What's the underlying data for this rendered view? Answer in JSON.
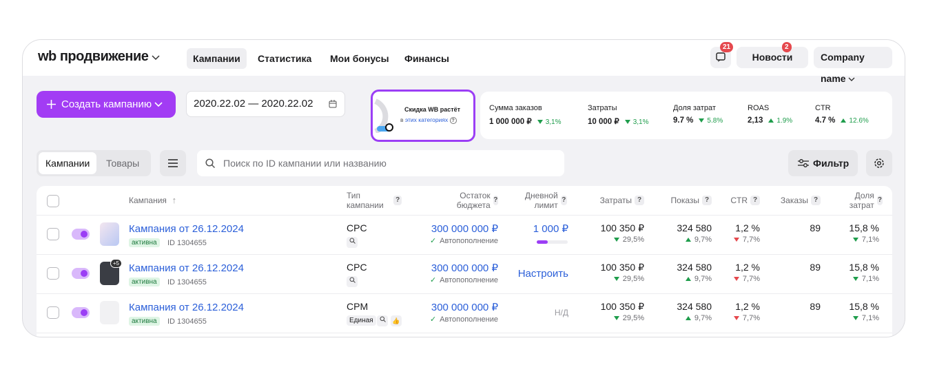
{
  "header": {
    "logo": "wb продвижение",
    "nav": [
      "Кампании",
      "Статистика",
      "Мои бонусы",
      "Финансы"
    ],
    "chat_badge": "21",
    "news": "Новости",
    "news_badge": "2",
    "company": "Company name"
  },
  "toolbar": {
    "create": "Создать кампанию",
    "date_from": "2020.22.02",
    "date_sep": "—",
    "date_to": "2020.22.02",
    "promo": {
      "title": "Скидка WB растёт",
      "prefix": "в",
      "link": "этих категориях"
    },
    "stats": [
      {
        "label": "Сумма заказов",
        "value": "1 000 000 ₽",
        "change": {
          "text": "3,1%",
          "dir": "down",
          "color": "#1f9d4c"
        }
      },
      {
        "label": "Затраты",
        "value": "10 000 ₽",
        "change": {
          "text": "3,1%",
          "dir": "down",
          "color": "#1f9d4c"
        }
      },
      {
        "label": "Доля затрат",
        "value": "9.7 %",
        "change": {
          "text": "5.8%",
          "dir": "down",
          "color": "#1f9d4c"
        }
      },
      {
        "label": "ROAS",
        "value": "2,13",
        "change": {
          "text": "1.9%",
          "dir": "up",
          "color": "#1f9d4c"
        }
      },
      {
        "label": "CTR",
        "value": "4.7 %",
        "change": {
          "text": "12.6%",
          "dir": "up",
          "color": "#1f9d4c"
        }
      }
    ]
  },
  "filters": {
    "tabs": [
      "Кампании",
      "Товары"
    ],
    "search": "Поиск по ID кампании или названию",
    "filter": "Фильтр"
  },
  "table": {
    "columns": [
      "Кампания",
      "Тип кампании",
      "Остаток бюджета",
      "Дневной лимит",
      "Затраты",
      "Показы",
      "CTR",
      "Заказы",
      "Доля затрат"
    ],
    "rows": [
      {
        "name": "Кампания от 26.12.2024",
        "status": "активна",
        "id": "ID 1304655",
        "type": "CPC",
        "type_tag": null,
        "image_badge": null,
        "budget": "300 000 000 ₽",
        "autopay": "Автопополнение",
        "limit": "1 000 ₽",
        "limit_kind": "value",
        "spend": "100 350 ₽",
        "spend_change": {
          "text": "29,5%",
          "dir": "down",
          "color": "#1f9d4c"
        },
        "shows": "324 580",
        "shows_change": {
          "text": "9,7%",
          "dir": "up",
          "color": "#1f9d4c"
        },
        "ctr": "1,2 %",
        "ctr_change": {
          "text": "7,7%",
          "dir": "down",
          "color": "#e5484d"
        },
        "orders": "89",
        "share": "15,8 %",
        "share_change": {
          "text": "7,1%",
          "dir": "down",
          "color": "#1f9d4c"
        }
      },
      {
        "name": "Кампания от 26.12.2024",
        "status": "активна",
        "id": "ID 1304655",
        "type": "CPC",
        "type_tag": null,
        "image_badge": "+5",
        "budget": "300 000 000 ₽",
        "autopay": "Автопополнение",
        "limit": "Настроить",
        "limit_kind": "link",
        "spend": "100 350 ₽",
        "spend_change": {
          "text": "29,5%",
          "dir": "down",
          "color": "#1f9d4c"
        },
        "shows": "324 580",
        "shows_change": {
          "text": "9,7%",
          "dir": "up",
          "color": "#1f9d4c"
        },
        "ctr": "1,2 %",
        "ctr_change": {
          "text": "7,7%",
          "dir": "down",
          "color": "#e5484d"
        },
        "orders": "89",
        "share": "15,8 %",
        "share_change": {
          "text": "7,1%",
          "dir": "down",
          "color": "#1f9d4c"
        }
      },
      {
        "name": "Кампания от 26.12.2024",
        "status": "активна",
        "id": "ID 1304655",
        "type": "CPM",
        "type_tag": "Единая",
        "image_badge": null,
        "budget": "300 000 000 ₽",
        "autopay": "Автопополнение",
        "limit": "Н/Д",
        "limit_kind": "none",
        "spend": "100 350 ₽",
        "spend_change": {
          "text": "29,5%",
          "dir": "down",
          "color": "#1f9d4c"
        },
        "shows": "324 580",
        "shows_change": {
          "text": "9,7%",
          "dir": "up",
          "color": "#1f9d4c"
        },
        "ctr": "1,2 %",
        "ctr_change": {
          "text": "7,7%",
          "dir": "down",
          "color": "#e5484d"
        },
        "orders": "89",
        "share": "15,8 %",
        "share_change": {
          "text": "7,1%",
          "dir": "down",
          "color": "#1f9d4c"
        }
      }
    ]
  }
}
